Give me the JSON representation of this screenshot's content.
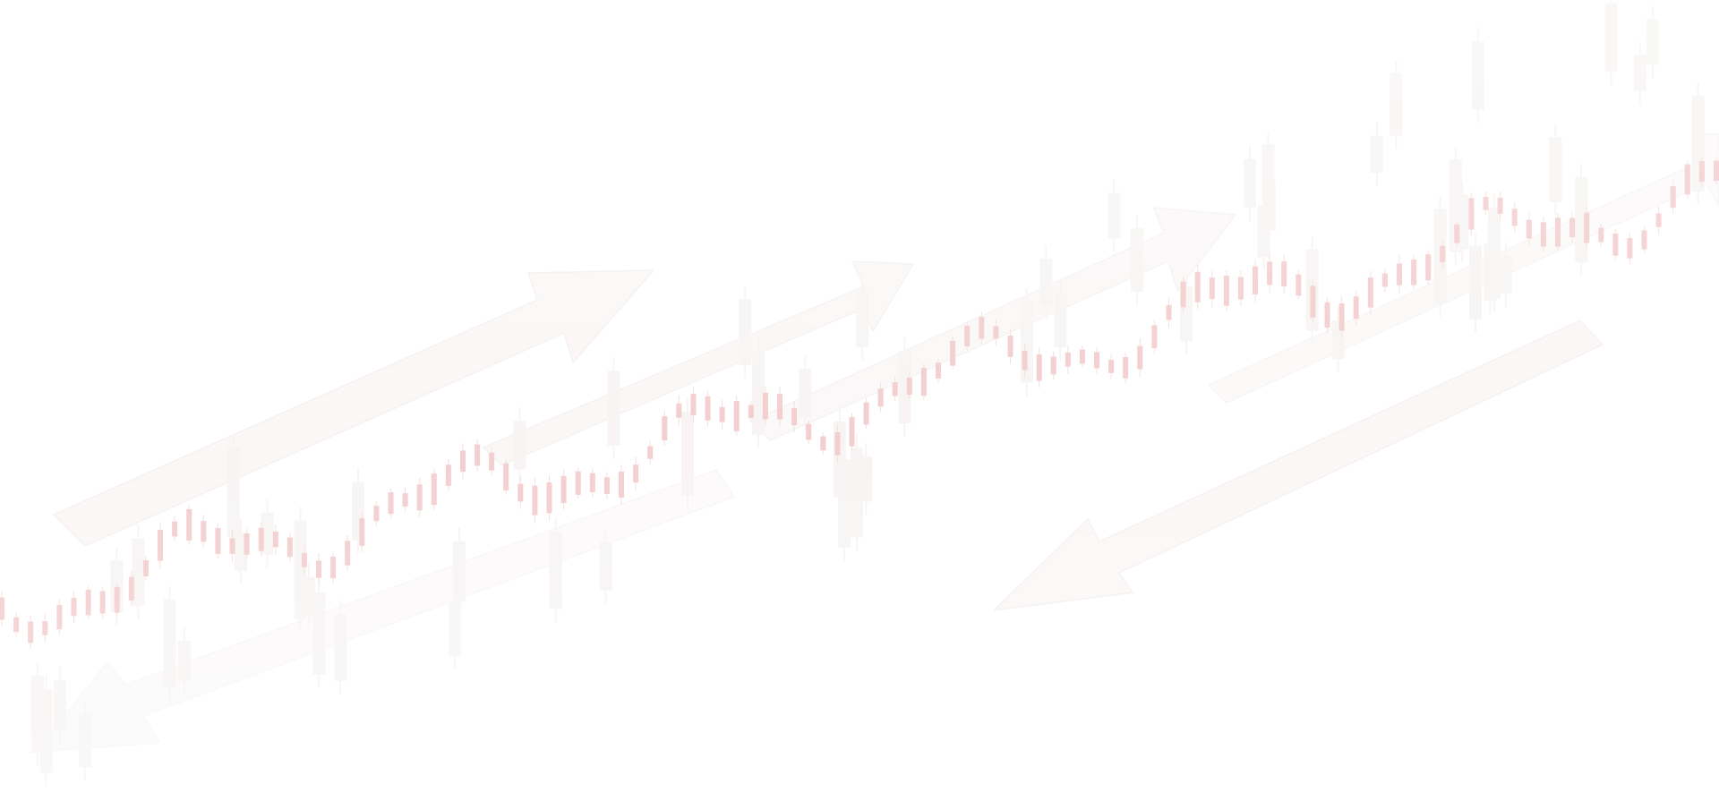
{
  "background": {
    "theme": "faint stock market candlestick chart with trend arrows",
    "colors": {
      "page": "#ffffff",
      "candle": "#f2c9c9",
      "candle_wick": "#f5dada",
      "ghost_candle": "#f7f3f3",
      "arrow": "#faf6f6",
      "label": "#e8e3e3"
    }
  }
}
